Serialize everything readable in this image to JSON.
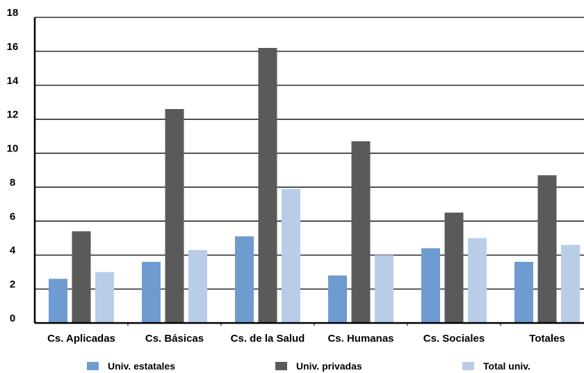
{
  "chart_data": {
    "type": "bar",
    "categories": [
      "Cs. Aplicadas",
      "Cs. Básicas",
      "Cs. de la Salud",
      "Cs. Humanas",
      "Cs. Sociales",
      "Totales"
    ],
    "series": [
      {
        "name": "Univ. estatales",
        "color": "#6e9bd0",
        "values": [
          2.6,
          3.6,
          5.1,
          2.8,
          4.4,
          3.6
        ]
      },
      {
        "name": "Univ. privadas",
        "color": "#5a5a5a",
        "values": [
          5.4,
          12.6,
          16.2,
          10.7,
          6.5,
          8.7
        ]
      },
      {
        "name": "Total univ.",
        "color": "#b9cde9",
        "values": [
          3.0,
          4.3,
          7.9,
          4.0,
          5.0,
          4.6
        ]
      }
    ],
    "yticks": [
      "18",
      "16",
      "14",
      "12",
      "10",
      "8",
      "6",
      "4",
      "2",
      "0"
    ],
    "ylim": [
      0,
      18
    ],
    "grid": true,
    "legend_position": "bottom",
    "title": "",
    "xlabel": "",
    "ylabel": ""
  }
}
